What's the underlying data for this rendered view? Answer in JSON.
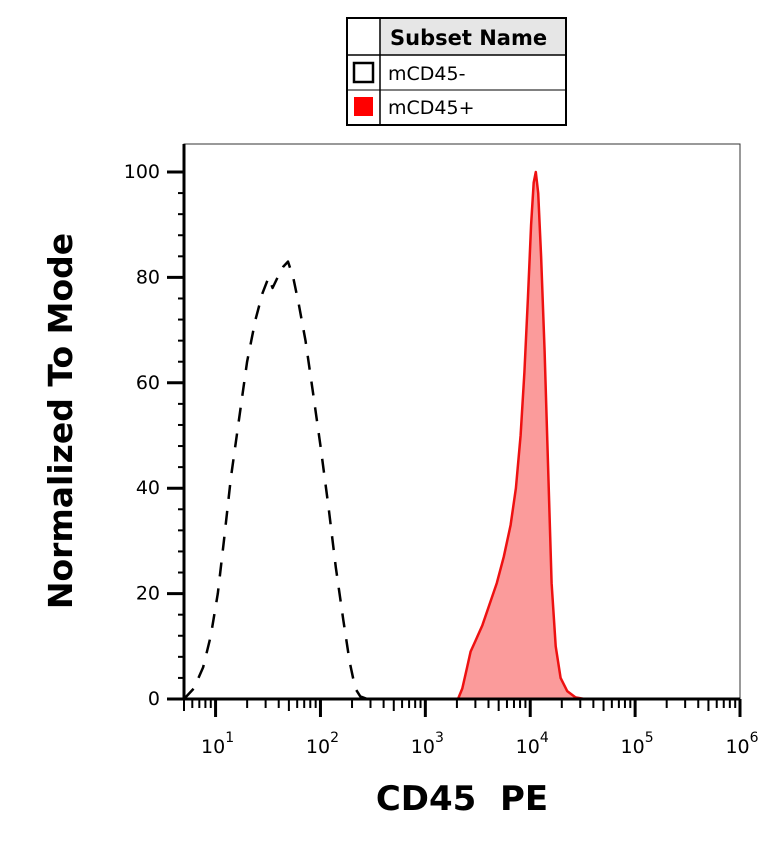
{
  "chart_data": {
    "type": "area",
    "x_scale": "log",
    "xlabel": "CD45  PE",
    "ylabel": "Normalized To Mode",
    "xlim": [
      5,
      1000000
    ],
    "ylim": [
      0,
      100
    ],
    "y_ticks": [
      {
        "value": 0,
        "label": "0"
      },
      {
        "value": 20,
        "label": "20"
      },
      {
        "value": 40,
        "label": "40"
      },
      {
        "value": 60,
        "label": "60"
      },
      {
        "value": 80,
        "label": "80"
      },
      {
        "value": 100,
        "label": "100"
      }
    ],
    "x_ticks": [
      {
        "value": 10,
        "base": "10",
        "exp": "1"
      },
      {
        "value": 100,
        "base": "10",
        "exp": "2"
      },
      {
        "value": 1000,
        "base": "10",
        "exp": "3"
      },
      {
        "value": 10000,
        "base": "10",
        "exp": "4"
      },
      {
        "value": 100000,
        "base": "10",
        "exp": "5"
      },
      {
        "value": 1000000,
        "base": "10",
        "exp": "6"
      }
    ],
    "grid": false,
    "legend": {
      "position": "top-center",
      "header": "Subset Name",
      "entries": [
        {
          "name": "mCD45-",
          "swatch": "outline"
        },
        {
          "name": "mCD45+",
          "swatch": "filled"
        }
      ]
    },
    "series": [
      {
        "name": "mCD45-",
        "style": "dashed",
        "color": "#000000",
        "fill": "none",
        "points": [
          [
            5,
            0
          ],
          [
            6.2,
            2
          ],
          [
            7.6,
            6
          ],
          [
            9,
            12
          ],
          [
            10.5,
            20
          ],
          [
            12,
            30
          ],
          [
            14,
            42
          ],
          [
            17,
            54
          ],
          [
            20,
            64
          ],
          [
            24,
            72
          ],
          [
            28,
            77
          ],
          [
            32,
            80
          ],
          [
            35,
            78
          ],
          [
            39,
            80
          ],
          [
            44,
            82
          ],
          [
            49,
            83
          ],
          [
            55,
            80
          ],
          [
            62,
            75
          ],
          [
            72,
            68
          ],
          [
            85,
            58
          ],
          [
            100,
            48
          ],
          [
            120,
            36
          ],
          [
            140,
            25
          ],
          [
            165,
            15
          ],
          [
            190,
            7
          ],
          [
            215,
            2
          ],
          [
            240,
            0.5
          ],
          [
            280,
            0
          ],
          [
            1000000,
            0
          ]
        ]
      },
      {
        "name": "mCD45+",
        "style": "solid",
        "color": "#ee1111",
        "fill": "#fb9b9b",
        "points": [
          [
            5,
            0
          ],
          [
            2050,
            0
          ],
          [
            2250,
            2
          ],
          [
            2500,
            6
          ],
          [
            2700,
            9
          ],
          [
            3000,
            11
          ],
          [
            3500,
            14
          ],
          [
            4100,
            18
          ],
          [
            4800,
            22
          ],
          [
            5600,
            27
          ],
          [
            6500,
            33
          ],
          [
            7300,
            40
          ],
          [
            8100,
            50
          ],
          [
            8800,
            62
          ],
          [
            9500,
            76
          ],
          [
            10200,
            90
          ],
          [
            10800,
            98
          ],
          [
            11300,
            100
          ],
          [
            11900,
            96
          ],
          [
            12700,
            84
          ],
          [
            13700,
            66
          ],
          [
            14800,
            44
          ],
          [
            16000,
            22
          ],
          [
            17500,
            10
          ],
          [
            19500,
            4
          ],
          [
            22500,
            1.5
          ],
          [
            27000,
            0.3
          ],
          [
            33000,
            0
          ],
          [
            1000000,
            0
          ]
        ]
      }
    ]
  }
}
